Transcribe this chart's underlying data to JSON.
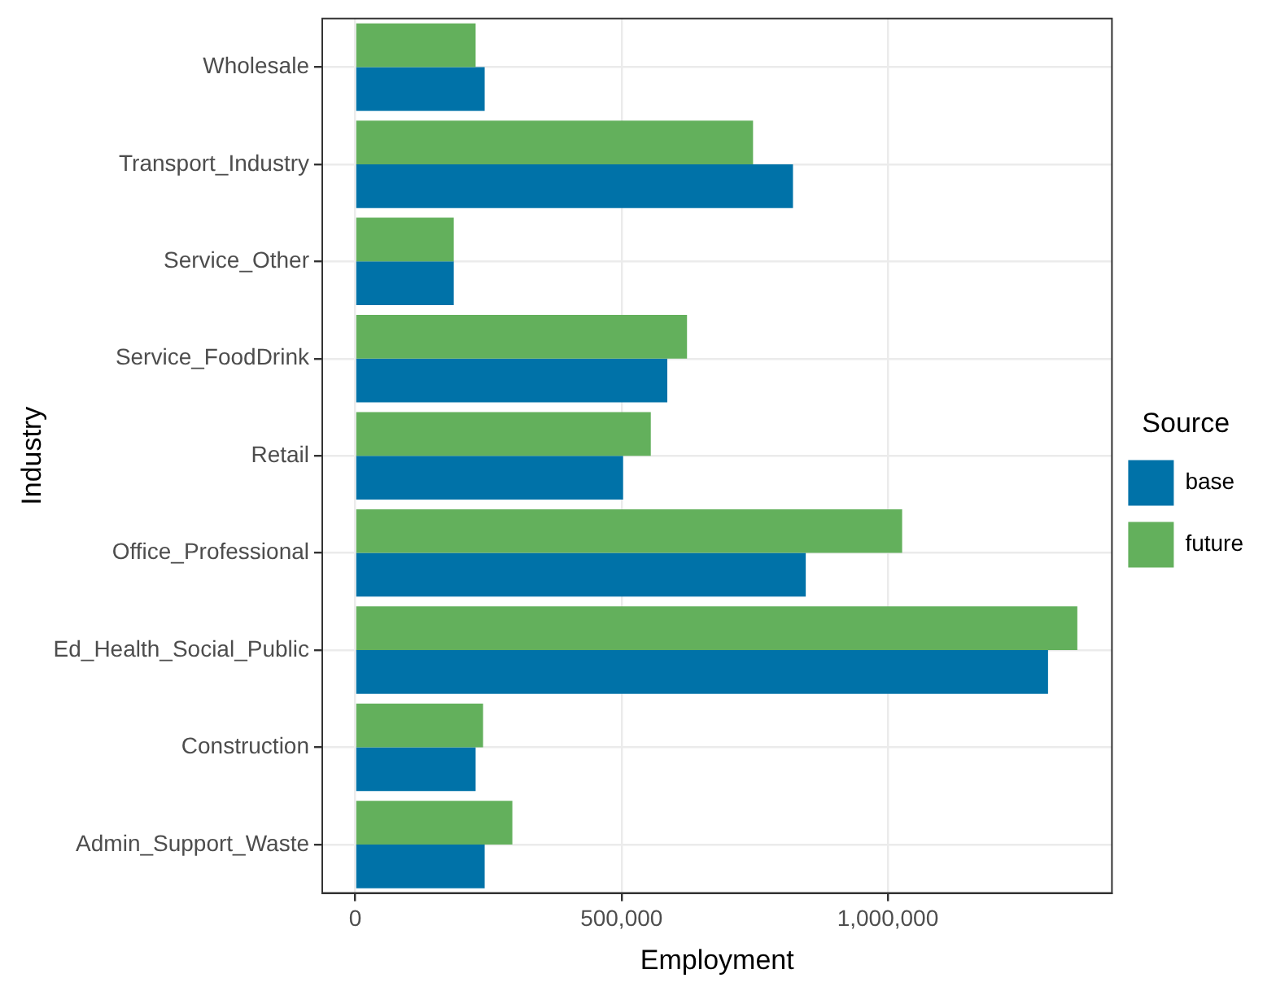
{
  "chart_data": {
    "type": "bar",
    "orientation": "horizontal",
    "xlabel": "Employment",
    "ylabel": "Industry",
    "legend_title": "Source",
    "legend": "right",
    "categories": [
      "Wholesale",
      "Transport_Industry",
      "Service_Other",
      "Service_FoodDrink",
      "Retail",
      "Office_Professional",
      "Ed_Health_Social_Public",
      "Construction",
      "Admin_Support_Waste"
    ],
    "series": [
      {
        "name": "base",
        "color": "#0072a8",
        "values": [
          243000,
          822000,
          185000,
          586000,
          503000,
          846000,
          1301000,
          226000,
          243000
        ]
      },
      {
        "name": "future",
        "color": "#63b05c",
        "values": [
          226000,
          747000,
          185000,
          623000,
          555000,
          1027000,
          1356000,
          240000,
          295000
        ]
      }
    ],
    "xlim": [
      -62000,
      1421000
    ],
    "xticks": [
      {
        "value": 0,
        "label": "0"
      },
      {
        "value": 500000,
        "label": "500,000"
      },
      {
        "value": 1000000,
        "label": "1,000,000"
      }
    ],
    "grid": true
  }
}
